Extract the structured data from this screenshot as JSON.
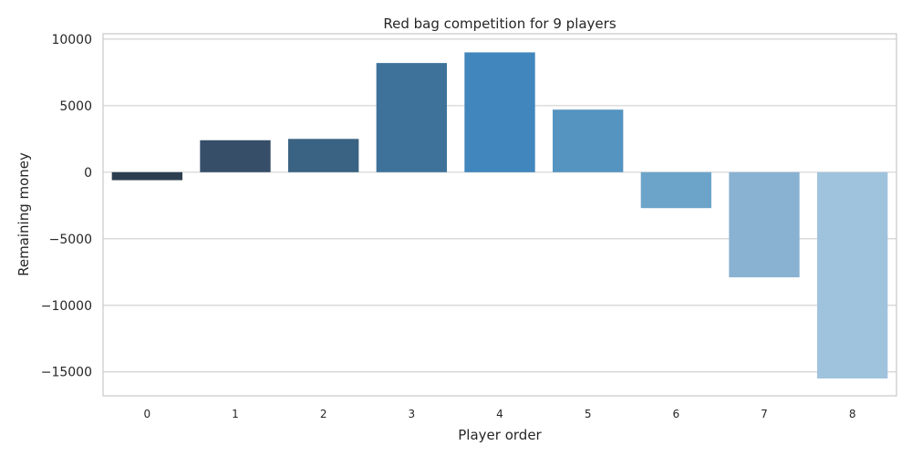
{
  "chart_data": {
    "type": "bar",
    "title": "Red bag competition for 9 players",
    "xlabel": "Player order",
    "ylabel": "Remaining money",
    "categories": [
      "0",
      "1",
      "2",
      "3",
      "4",
      "5",
      "6",
      "7",
      "8"
    ],
    "values": [
      -600,
      2400,
      2500,
      8200,
      9000,
      4700,
      -2700,
      -7900,
      -15500
    ],
    "ylim": [
      -16800,
      10400
    ],
    "yticks": [
      10000,
      5000,
      0,
      -5000,
      -10000,
      -15000
    ],
    "ytick_labels": [
      "10000",
      "5000",
      "0",
      "−5000",
      "−10000",
      "−15000"
    ],
    "grid": "horizontal",
    "colors": [
      "#2d3f4f",
      "#364e68",
      "#3a6282",
      "#3e729b",
      "#4186bd",
      "#5594c1",
      "#6ca4c9",
      "#89b2d2",
      "#a0c3dd"
    ]
  }
}
